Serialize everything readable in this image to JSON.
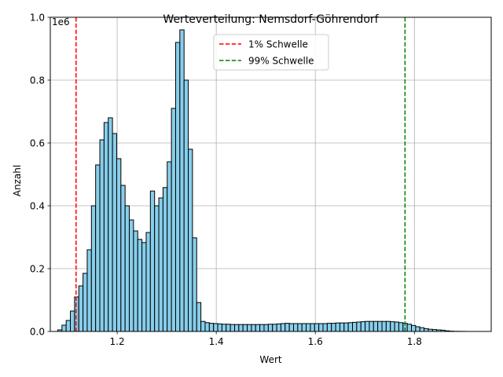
{
  "chart_data": {
    "type": "bar",
    "title": "Werteverteilung: Nemsdorf-Göhrendorf",
    "xlabel": "Wert",
    "ylabel": "Anzahl",
    "y_offset_label": "1e6",
    "xlim": [
      1.065,
      1.955
    ],
    "ylim": [
      0,
      1000000
    ],
    "x_ticks": [
      1.2,
      1.4,
      1.6,
      1.8
    ],
    "x_tick_labels": [
      "1.2",
      "1.4",
      "1.6",
      "1.8"
    ],
    "y_ticks": [
      0,
      200000,
      400000,
      600000,
      800000,
      1000000
    ],
    "y_tick_labels": [
      "0.0",
      "0.2",
      "0.4",
      "0.6",
      "0.8",
      "1.0"
    ],
    "grid": true,
    "legend_position": "top-center",
    "colors": {
      "bars": "#87ceeb",
      "bar_edge": "#000000",
      "p1": "#ff0000",
      "p99": "#008000",
      "grid": "#b0b0b0"
    },
    "bin_start": 1.08,
    "bin_width": 0.0085,
    "values": [
      5000,
      20000,
      35000,
      65000,
      110000,
      145000,
      185000,
      260000,
      400000,
      530000,
      610000,
      665000,
      680000,
      630000,
      550000,
      465000,
      400000,
      355000,
      320000,
      293000,
      283000,
      315000,
      447000,
      400000,
      425000,
      458000,
      540000,
      710000,
      920000,
      960000,
      800000,
      580000,
      298000,
      92000,
      32000,
      28000,
      26000,
      25000,
      24000,
      23000,
      23000,
      22000,
      22000,
      22000,
      22000,
      22000,
      22000,
      22000,
      22000,
      22000,
      23000,
      23000,
      24000,
      25000,
      26000,
      25000,
      25000,
      25000,
      25000,
      25000,
      25000,
      25000,
      25000,
      25000,
      26000,
      26000,
      27000,
      27000,
      27000,
      28000,
      29000,
      30000,
      31000,
      32000,
      32000,
      32000,
      32000,
      32000,
      32000,
      31000,
      30000,
      28000,
      26000,
      23000,
      19000,
      15000,
      12000,
      9000,
      7000,
      6000,
      5000,
      4000,
      2000,
      1000,
      500,
      300,
      200
    ],
    "thresholds": [
      {
        "name": "1% Schwelle",
        "x": 1.117,
        "color": "#ff0000"
      },
      {
        "name": "99% Schwelle",
        "x": 1.781,
        "color": "#008000"
      }
    ]
  }
}
